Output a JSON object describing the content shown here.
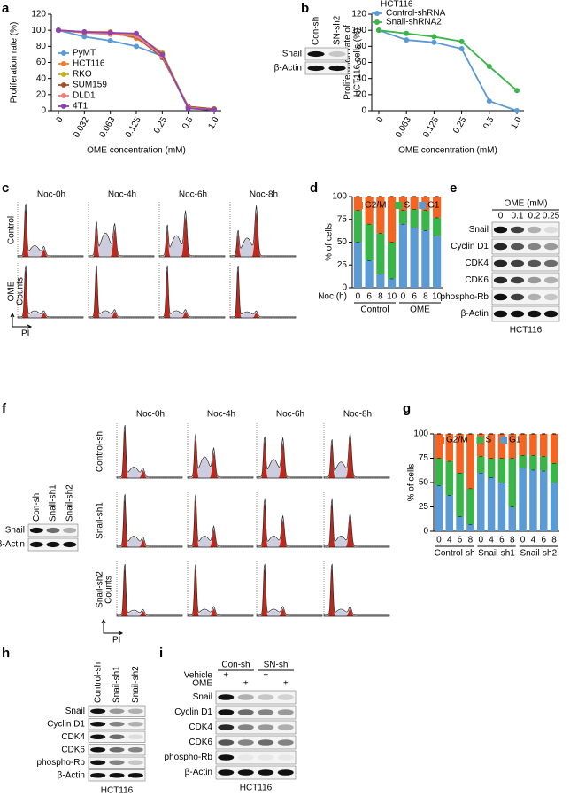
{
  "chart_data": [
    {
      "type": "line",
      "ylabel": "Proliferation rate (%)",
      "xlabel": "OME concentration (mM)",
      "categories": [
        "0",
        "0.032",
        "0.063",
        "0.125",
        "0.25",
        "0.5",
        "1.0"
      ],
      "ylim": [
        0,
        120
      ],
      "yticks": [
        0,
        20,
        40,
        60,
        80,
        100,
        120
      ],
      "series": [
        {
          "name": "PyMT",
          "color": "#5b9bd5",
          "values": [
            100,
            92,
            87,
            80,
            68,
            3,
            1
          ]
        },
        {
          "name": "HCT116",
          "color": "#ed7d31",
          "values": [
            100,
            98,
            98,
            90,
            70,
            5,
            2
          ]
        },
        {
          "name": "RKO",
          "color": "#c9b21a",
          "values": [
            100,
            97,
            97,
            94,
            72,
            4,
            2
          ]
        },
        {
          "name": "SUM159",
          "color": "#a0522d",
          "values": [
            100,
            97,
            96,
            92,
            66,
            5,
            2
          ]
        },
        {
          "name": "DLD1",
          "color": "#f08080",
          "values": [
            100,
            97,
            95,
            93,
            68,
            4,
            1
          ]
        },
        {
          "name": "4T1",
          "color": "#8e44ad",
          "values": [
            100,
            98,
            97,
            96,
            70,
            3,
            1
          ]
        }
      ]
    },
    {
      "type": "line",
      "legend_title": "HCT116",
      "ylabel": [
        "Proliferation rate of",
        "HCT116 cells (%)"
      ],
      "xlabel": "OME concentration (mM)",
      "categories": [
        "0",
        "0.063",
        "0.125",
        "0.25",
        "0.5",
        "1.0"
      ],
      "ylim": [
        0,
        120
      ],
      "yticks": [
        0,
        20,
        40,
        60,
        80,
        100,
        120
      ],
      "series": [
        {
          "name": "Control-shRNA",
          "color": "#5b9bd5",
          "values": [
            100,
            88,
            85,
            77,
            12,
            0
          ]
        },
        {
          "name": "Snail-shRNA2",
          "color": "#3ab54a",
          "values": [
            100,
            96,
            92,
            86,
            55,
            25
          ]
        }
      ]
    },
    {
      "type": "stacked_bar",
      "ylabel": "% of cells",
      "xlabel": "Noc (h)",
      "categories": [
        "0",
        "6",
        "8",
        "10",
        "0",
        "6",
        "8",
        "10"
      ],
      "groups": [
        "Control",
        "OME"
      ],
      "ylim": [
        0,
        100
      ],
      "yticks": [
        0,
        25,
        50,
        75,
        100
      ],
      "series": [
        {
          "name": "G1",
          "color": "#5b9bd5",
          "values": [
            50,
            30,
            15,
            10,
            70,
            66,
            63,
            57
          ]
        },
        {
          "name": "S",
          "color": "#3ab54a",
          "values": [
            35,
            40,
            45,
            40,
            15,
            20,
            22,
            20
          ]
        },
        {
          "name": "G2/M",
          "color": "#f26522",
          "values": [
            15,
            30,
            40,
            50,
            15,
            14,
            15,
            23
          ]
        }
      ]
    },
    {
      "type": "stacked_bar",
      "ylabel": "% of cells",
      "categories": [
        "0",
        "4",
        "6",
        "8",
        "0",
        "4",
        "6",
        "8",
        "0",
        "4",
        "6",
        "8"
      ],
      "groups": [
        "Control-sh",
        "Snail-sh1",
        "Snail-sh2"
      ],
      "ylim": [
        0,
        100
      ],
      "yticks": [
        0,
        25,
        50,
        75,
        100
      ],
      "series": [
        {
          "name": "G1",
          "color": "#5b9bd5",
          "values": [
            47,
            37,
            15,
            7,
            60,
            55,
            50,
            25,
            65,
            63,
            62,
            50
          ]
        },
        {
          "name": "S",
          "color": "#3ab54a",
          "values": [
            28,
            35,
            45,
            37,
            17,
            20,
            25,
            50,
            13,
            15,
            15,
            20
          ]
        },
        {
          "name": "G2/M",
          "color": "#f26522",
          "values": [
            25,
            28,
            40,
            56,
            23,
            25,
            25,
            25,
            22,
            22,
            23,
            30
          ]
        }
      ]
    }
  ],
  "panel_labels": [
    "a",
    "b",
    "c",
    "d",
    "e",
    "f",
    "g",
    "h",
    "i"
  ],
  "blot_b": {
    "lanes": [
      "Con-sh",
      "SN-sh2"
    ],
    "rows": [
      "Snail",
      "β-Actin"
    ]
  },
  "flow_c": {
    "columns": [
      "Noc-0h",
      "Noc-4h",
      "Noc-6h",
      "Noc-8h"
    ],
    "rows": [
      "Control",
      "OME"
    ],
    "y_label": "Counts",
    "x_label": "PI"
  },
  "blot_e": {
    "title": "OME (mM)",
    "lanes": [
      "0",
      "0.1",
      "0.2",
      "0.25"
    ],
    "rows": [
      "Snail",
      "Cyclin D1",
      "CDK4",
      "CDK6",
      "phospho-Rb",
      "β-Actin"
    ],
    "cell_line": "HCT116"
  },
  "blot_f": {
    "lanes": [
      "Con-sh",
      "Snail-sh1",
      "Snail-sh2"
    ],
    "rows": [
      "Snail",
      "β-Actin"
    ]
  },
  "flow_f": {
    "columns": [
      "Noc-0h",
      "Noc-4h",
      "Noc-6h",
      "Noc-8h"
    ],
    "rows": [
      "Control-sh",
      "Snail-sh1",
      "Snail-sh2"
    ],
    "y_label": "Counts",
    "x_label": "PI"
  },
  "blot_h": {
    "lanes": [
      "Control-sh",
      "Snail-sh1",
      "Snail-sh2"
    ],
    "rows": [
      "Snail",
      "Cyclin D1",
      "CDK4",
      "CDK6",
      "phospho-Rb",
      "β-Actin"
    ],
    "cell_line": "HCT116"
  },
  "blot_i": {
    "groups": [
      "Con-sh",
      "SN-sh"
    ],
    "treatments": [
      {
        "label": "Vehicle",
        "marks": [
          "+",
          "+"
        ]
      },
      {
        "label": "OME",
        "marks": [
          "+",
          "+"
        ]
      }
    ],
    "rows": [
      "Snail",
      "Cyclin D1",
      "CDK4",
      "CDK6",
      "phospho-Rb",
      "β-Actin"
    ],
    "cell_line": "HCT116"
  }
}
